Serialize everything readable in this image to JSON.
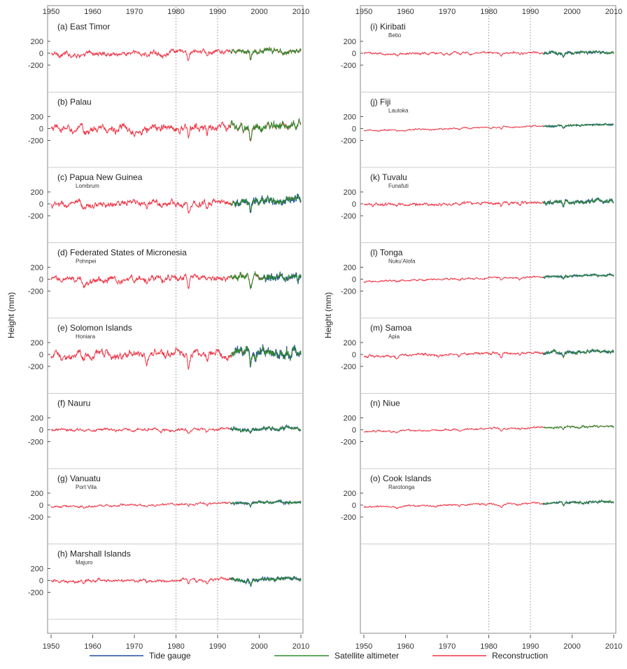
{
  "chart_data": {
    "type": "line",
    "xlim": [
      1950,
      2010
    ],
    "x_ticks": [
      "1950",
      "1960",
      "1970",
      "1980",
      "1990",
      "2000",
      "2010"
    ],
    "y_ticks": [
      "200",
      "0",
      "-200"
    ],
    "ylabel": "Height (mm)",
    "xlabel": "",
    "grid": "dotted vertical lines at 1980 and 1990",
    "legend": {
      "placement": "bottom",
      "entries": [
        {
          "name": "Tide gauge",
          "color": "#1f4fa3"
        },
        {
          "name": "Satellite altimeter",
          "color": "#2e8b2e"
        },
        {
          "name": "Reconstruction",
          "color": "#ee3344"
        }
      ]
    },
    "panels": [
      {
        "label": "(a) East Timor",
        "site": "",
        "column": "left",
        "amplitude_mm": 70,
        "trend_mm": 60,
        "tide_gauge_start": null,
        "altimeter": true
      },
      {
        "label": "(b) Palau",
        "site": "",
        "column": "left",
        "amplitude_mm": 110,
        "trend_mm": 60,
        "tide_gauge_start": null,
        "altimeter": true
      },
      {
        "label": "(c) Papua New Guinea",
        "site": "Lombrum",
        "column": "left",
        "amplitude_mm": 90,
        "trend_mm": 80,
        "tide_gauge_start": 1994,
        "altimeter": true
      },
      {
        "label": "(d) Federated States of Micronesia",
        "site": "Pohnpei",
        "column": "left",
        "amplitude_mm": 90,
        "trend_mm": 70,
        "tide_gauge_start": 2001,
        "altimeter": true
      },
      {
        "label": "(e) Solomon Islands",
        "site": "Honiara",
        "column": "left",
        "amplitude_mm": 110,
        "trend_mm": 80,
        "tide_gauge_start": 1994,
        "altimeter": true
      },
      {
        "label": "(f) Nauru",
        "site": "",
        "column": "left",
        "amplitude_mm": 40,
        "trend_mm": 30,
        "tide_gauge_start": 1993,
        "altimeter": true
      },
      {
        "label": "(g) Vanuatu",
        "site": "Port Vila",
        "column": "left",
        "amplitude_mm": 30,
        "trend_mm": 90,
        "tide_gauge_start": 1993,
        "altimeter": true
      },
      {
        "label": "(h) Marshall Islands",
        "site": "Majuro",
        "column": "left",
        "amplitude_mm": 45,
        "trend_mm": 40,
        "tide_gauge_start": 1993,
        "altimeter": true
      },
      {
        "label": "(i) Kiribati",
        "site": "Betio",
        "column": "right",
        "amplitude_mm": 30,
        "trend_mm": 20,
        "tide_gauge_start": 1993,
        "altimeter": true
      },
      {
        "label": "(j) Fiji",
        "site": "Lautoka",
        "column": "right",
        "amplitude_mm": 20,
        "trend_mm": 110,
        "tide_gauge_start": 1993,
        "altimeter": true
      },
      {
        "label": "(k) Tuvalu",
        "site": "Funafuti",
        "column": "right",
        "amplitude_mm": 40,
        "trend_mm": 70,
        "tide_gauge_start": 1993,
        "altimeter": true
      },
      {
        "label": "(l) Tonga",
        "site": "Nuku'Alofa",
        "column": "right",
        "amplitude_mm": 25,
        "trend_mm": 110,
        "tide_gauge_start": 1993,
        "altimeter": true
      },
      {
        "label": "(m) Samoa",
        "site": "Apia",
        "column": "right",
        "amplitude_mm": 35,
        "trend_mm": 80,
        "tide_gauge_start": 1993,
        "altimeter": true
      },
      {
        "label": "(n) Niue",
        "site": "",
        "column": "right",
        "amplitude_mm": 25,
        "trend_mm": 100,
        "tide_gauge_start": null,
        "altimeter": true
      },
      {
        "label": "(o) Cook Islands",
        "site": "Rarotonga",
        "column": "right",
        "amplitude_mm": 25,
        "trend_mm": 90,
        "tide_gauge_start": 1993,
        "altimeter": true
      }
    ]
  }
}
